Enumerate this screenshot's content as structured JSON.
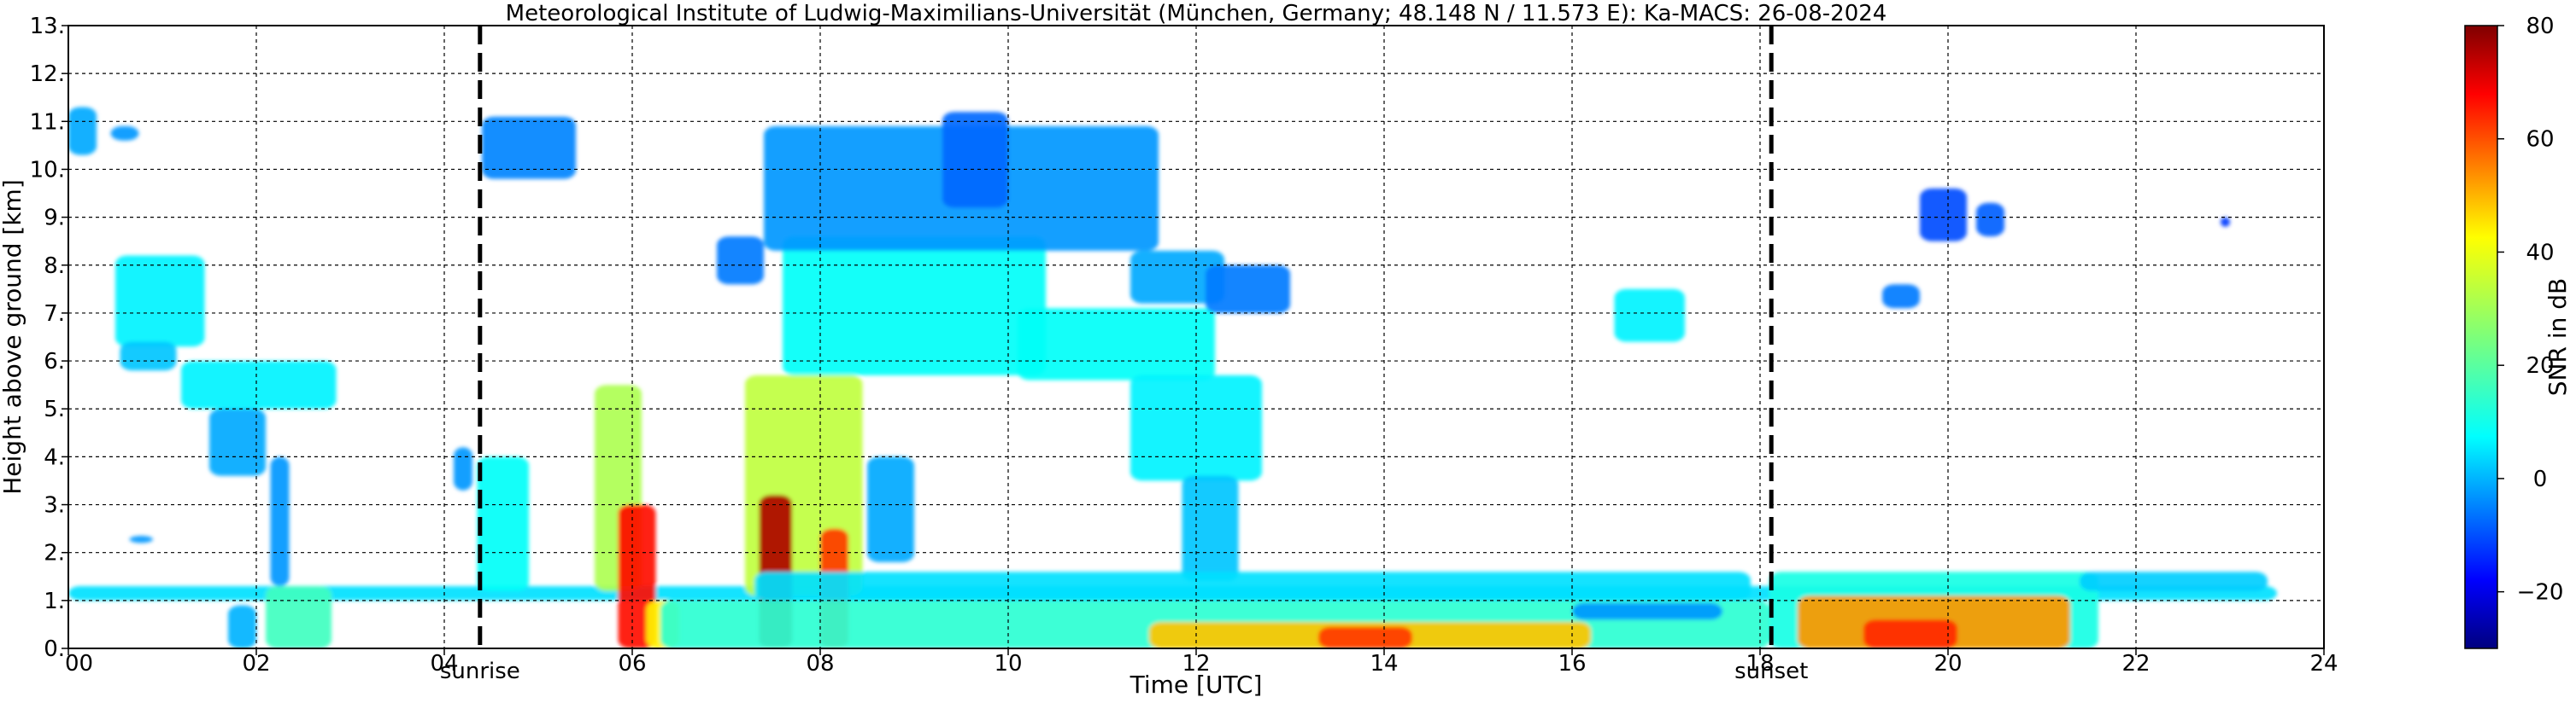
{
  "chart_data": {
    "type": "heatmap",
    "title": "Meteorological Institute of Ludwig-Maximilians-Universität (München, Germany; 48.148 N / 11.573 E):    Ka-MACS: 26-08-2024",
    "xlabel": "Time [UTC]",
    "ylabel": "Height above ground [km]",
    "colorbar_label": "SNR in dB",
    "xlim": [
      0,
      24
    ],
    "ylim": [
      0,
      13
    ],
    "x_ticks": [
      0,
      2,
      4,
      6,
      8,
      10,
      12,
      14,
      16,
      18,
      20,
      22,
      24
    ],
    "x_tick_labels": [
      "00",
      "02",
      "04",
      "06",
      "08",
      "10",
      "12",
      "14",
      "16",
      "18",
      "20",
      "22",
      "24"
    ],
    "y_ticks": [
      0,
      1,
      2,
      3,
      4,
      5,
      6,
      7,
      8,
      9,
      10,
      11,
      12,
      13
    ],
    "y_tick_labels": [
      "0.",
      "1.",
      "2.",
      "3.",
      "4.",
      "5.",
      "6.",
      "7.",
      "8.",
      "9.",
      "10.",
      "11.",
      "12.",
      "13."
    ],
    "grid": true,
    "colorbar": {
      "range": [
        -30,
        80
      ],
      "ticks": [
        -20,
        0,
        20,
        40,
        60,
        80
      ],
      "tick_labels": [
        "−20",
        "0",
        "20",
        "40",
        "60",
        "80"
      ],
      "colormap": "jet"
    },
    "annotations": [
      {
        "label": "sunrise",
        "x": 4.38
      },
      {
        "label": "sunset",
        "x": 18.12
      }
    ],
    "regions": [
      {
        "t0": 0.0,
        "t1": 23.5,
        "h0": 1.0,
        "h1": 1.3,
        "snr": 8
      },
      {
        "t0": 0.0,
        "t1": 0.3,
        "h0": 10.3,
        "h1": 11.3,
        "snr": 2
      },
      {
        "t0": 0.45,
        "t1": 0.75,
        "h0": 10.6,
        "h1": 10.9,
        "snr": 0
      },
      {
        "t0": 0.5,
        "t1": 1.45,
        "h0": 6.3,
        "h1": 8.2,
        "snr": 10
      },
      {
        "t0": 0.55,
        "t1": 1.15,
        "h0": 5.8,
        "h1": 6.4,
        "snr": 5
      },
      {
        "t0": 1.2,
        "t1": 2.85,
        "h0": 5.0,
        "h1": 6.0,
        "snr": 10
      },
      {
        "t0": 1.5,
        "t1": 2.1,
        "h0": 3.6,
        "h1": 5.0,
        "snr": 2
      },
      {
        "t0": 2.15,
        "t1": 2.35,
        "h0": 1.3,
        "h1": 4.0,
        "snr": 0
      },
      {
        "t0": 2.1,
        "t1": 2.8,
        "h0": 0.0,
        "h1": 1.3,
        "snr": 18
      },
      {
        "t0": 1.7,
        "t1": 2.0,
        "h0": 0.0,
        "h1": 0.9,
        "snr": 3
      },
      {
        "t0": 0.65,
        "t1": 0.9,
        "h0": 2.2,
        "h1": 2.35,
        "snr": 0
      },
      {
        "t0": 4.1,
        "t1": 4.3,
        "h0": 3.3,
        "h1": 4.2,
        "snr": 0
      },
      {
        "t0": 4.35,
        "t1": 4.9,
        "h0": 1.2,
        "h1": 4.0,
        "snr": 12
      },
      {
        "t0": 4.4,
        "t1": 5.4,
        "h0": 9.8,
        "h1": 11.1,
        "snr": -2
      },
      {
        "t0": 5.6,
        "t1": 6.1,
        "h0": 1.2,
        "h1": 5.5,
        "snr": 30
      },
      {
        "t0": 5.85,
        "t1": 6.25,
        "h0": 0.0,
        "h1": 3.0,
        "snr": 65
      },
      {
        "t0": 6.15,
        "t1": 6.5,
        "h0": 0.0,
        "h1": 1.0,
        "snr": 40
      },
      {
        "t0": 7.2,
        "t1": 8.45,
        "h0": 1.1,
        "h1": 5.7,
        "snr": 32
      },
      {
        "t0": 7.35,
        "t1": 7.7,
        "h0": 0.0,
        "h1": 3.2,
        "snr": 75
      },
      {
        "t0": 8.0,
        "t1": 8.3,
        "h0": 0.0,
        "h1": 2.5,
        "snr": 60
      },
      {
        "t0": 8.5,
        "t1": 9.0,
        "h0": 1.8,
        "h1": 4.0,
        "snr": 2
      },
      {
        "t0": 7.6,
        "t1": 10.4,
        "h0": 5.7,
        "h1": 8.6,
        "snr": 12
      },
      {
        "t0": 7.4,
        "t1": 11.6,
        "h0": 8.3,
        "h1": 10.9,
        "snr": 0
      },
      {
        "t0": 9.3,
        "t1": 10.0,
        "h0": 9.2,
        "h1": 11.2,
        "snr": -5
      },
      {
        "t0": 6.9,
        "t1": 7.4,
        "h0": 7.6,
        "h1": 8.6,
        "snr": -3
      },
      {
        "t0": 10.1,
        "t1": 12.2,
        "h0": 5.6,
        "h1": 7.1,
        "snr": 12
      },
      {
        "t0": 11.3,
        "t1": 12.3,
        "h0": 7.2,
        "h1": 8.3,
        "snr": 2
      },
      {
        "t0": 12.1,
        "t1": 13.0,
        "h0": 7.0,
        "h1": 8.0,
        "snr": -3
      },
      {
        "t0": 11.3,
        "t1": 12.7,
        "h0": 3.5,
        "h1": 5.7,
        "snr": 10
      },
      {
        "t0": 11.85,
        "t1": 12.45,
        "h0": 1.4,
        "h1": 3.6,
        "snr": 5
      },
      {
        "t0": 6.3,
        "t1": 18.1,
        "h0": 0.0,
        "h1": 1.0,
        "snr": 16
      },
      {
        "t0": 7.3,
        "t1": 17.9,
        "h0": 1.0,
        "h1": 1.6,
        "snr": 8
      },
      {
        "t0": 11.5,
        "t1": 16.2,
        "h0": 0.0,
        "h1": 0.55,
        "snr": 45
      },
      {
        "t0": 13.3,
        "t1": 14.3,
        "h0": 0.0,
        "h1": 0.45,
        "snr": 60
      },
      {
        "t0": 16.0,
        "t1": 17.6,
        "h0": 0.6,
        "h1": 0.95,
        "snr": 0
      },
      {
        "t0": 16.45,
        "t1": 17.2,
        "h0": 6.4,
        "h1": 7.5,
        "snr": 10
      },
      {
        "t0": 18.1,
        "t1": 21.6,
        "h0": 0.0,
        "h1": 1.6,
        "snr": 14
      },
      {
        "t0": 18.4,
        "t1": 21.3,
        "h0": 0.0,
        "h1": 1.1,
        "snr": 50
      },
      {
        "t0": 19.1,
        "t1": 20.1,
        "h0": 0.0,
        "h1": 0.6,
        "snr": 62
      },
      {
        "t0": 21.4,
        "t1": 23.4,
        "h0": 1.2,
        "h1": 1.6,
        "snr": 6
      },
      {
        "t0": 19.7,
        "t1": 20.2,
        "h0": 8.5,
        "h1": 9.6,
        "snr": -8
      },
      {
        "t0": 20.3,
        "t1": 20.6,
        "h0": 8.6,
        "h1": 9.3,
        "snr": -6
      },
      {
        "t0": 19.3,
        "t1": 19.7,
        "h0": 7.1,
        "h1": 7.6,
        "snr": -3
      },
      {
        "t0": 22.9,
        "t1": 23.0,
        "h0": 8.8,
        "h1": 9.0,
        "snr": -10
      }
    ]
  }
}
